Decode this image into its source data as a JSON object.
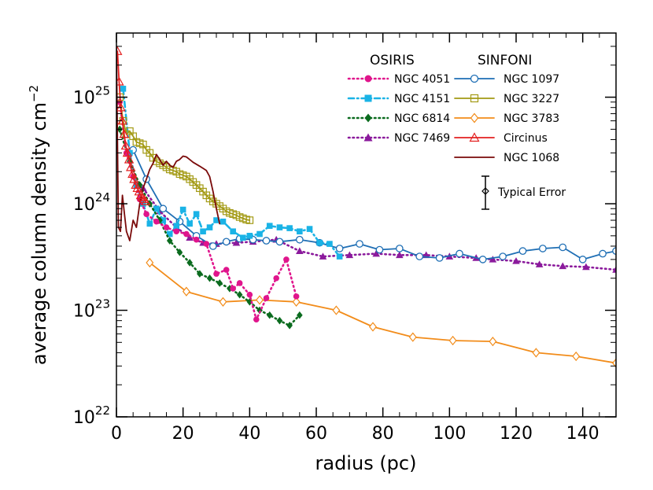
{
  "chart_data": {
    "type": "line",
    "xlabel": "radius (pc)",
    "ylabel": "average column density cm",
    "ylabel_exponent": "−2",
    "xlim": [
      0,
      150
    ],
    "ylim": [
      1e+22,
      4e+25
    ],
    "yscale": "log",
    "x_ticks": [
      0,
      20,
      40,
      60,
      80,
      100,
      120,
      140
    ],
    "x_tick_labels": [
      "0",
      "20",
      "40",
      "60",
      "80",
      "100",
      "120",
      "140"
    ],
    "y_ticks": [
      1e+22,
      1e+23,
      1e+24,
      1e+25
    ],
    "y_tick_base": "10",
    "y_tick_exponents": [
      "22",
      "23",
      "24",
      "25"
    ],
    "legend_placement": "top-right",
    "legend_groups": [
      "OSIRIS",
      "SINFONI"
    ],
    "typical_error_label": "Typical Error",
    "series": [
      {
        "name": "NGC 4051",
        "group": "OSIRIS",
        "color": "#e0158c",
        "dash": "dotted",
        "marker": "filled-circle",
        "x": [
          1,
          3,
          5,
          7,
          9,
          12,
          15,
          18,
          21,
          24,
          27,
          30,
          33,
          35,
          37,
          40,
          42,
          45,
          48,
          51,
          54
        ],
        "y": [
          9e+24,
          3e+24,
          1.8e+24,
          1.1e+24,
          8e+23,
          6.8e+23,
          6e+23,
          5.5e+23,
          5.2e+23,
          4.6e+23,
          4.2e+23,
          2.2e+23,
          2.4e+23,
          1.6e+23,
          1.8e+23,
          1.4e+23,
          8.2e+22,
          1.3e+23,
          2e+23,
          3e+23,
          1.35e+23
        ]
      },
      {
        "name": "NGC 4151",
        "group": "OSIRIS",
        "color": "#1ab3e6",
        "dash": "dash-dot",
        "marker": "filled-square",
        "x": [
          2,
          4,
          6,
          8,
          10,
          12,
          14,
          16,
          18,
          20,
          22,
          24,
          26,
          28,
          30,
          32,
          35,
          38,
          40,
          43,
          46,
          49,
          52,
          55,
          58,
          61,
          64,
          67
        ],
        "y": [
          1.2e+25,
          3e+24,
          1.5e+24,
          1e+24,
          6.5e+23,
          9e+23,
          7e+23,
          5.2e+23,
          6.2e+23,
          8.8e+23,
          6.5e+23,
          8e+23,
          5.5e+23,
          6e+23,
          7e+23,
          6.8e+23,
          5.5e+23,
          4.8e+23,
          5e+23,
          5.2e+23,
          6.2e+23,
          6e+23,
          5.9e+23,
          5.5e+23,
          5.8e+23,
          4.3e+23,
          4.2e+23,
          3.2e+23
        ]
      },
      {
        "name": "NGC 6814",
        "group": "OSIRIS",
        "color": "#0a6b1e",
        "dash": "dotted",
        "marker": "filled-diamond",
        "x": [
          1,
          4,
          7,
          10,
          13,
          16,
          19,
          22,
          25,
          28,
          31,
          34,
          37,
          40,
          43,
          46,
          49,
          52,
          55
        ],
        "y": [
          5e+24,
          2.5e+24,
          1.5e+24,
          1e+24,
          7e+23,
          4.5e+23,
          3.5e+23,
          2.8e+23,
          2.2e+23,
          2e+23,
          1.8e+23,
          1.6e+23,
          1.4e+23,
          1.2e+23,
          1e+23,
          9e+22,
          8e+22,
          7.2e+22,
          9e+22
        ]
      },
      {
        "name": "NGC 7469",
        "group": "OSIRIS",
        "color": "#8b1a9c",
        "dash": "dotted",
        "marker": "filled-triangle",
        "x": [
          8,
          13,
          18,
          22,
          26,
          30,
          36,
          41,
          48,
          55,
          62,
          70,
          78,
          85,
          93,
          100,
          108,
          113,
          120,
          127,
          134,
          141,
          150
        ],
        "y": [
          1.4e+24,
          8.5e+23,
          6e+23,
          4.8e+23,
          4.3e+23,
          4.2e+23,
          4.3e+23,
          4.4e+23,
          4.6e+23,
          3.6e+23,
          3.2e+23,
          3.3e+23,
          3.4e+23,
          3.3e+23,
          3.3e+23,
          3.2e+23,
          3.1e+23,
          3e+23,
          2.9e+23,
          2.7e+23,
          2.6e+23,
          2.55e+23,
          2.4e+23
        ]
      },
      {
        "name": "NGC 1097",
        "group": "SINFONI",
        "color": "#1f6fb5",
        "dash": "solid",
        "marker": "open-circle",
        "x": [
          5,
          9,
          14,
          19,
          24,
          29,
          33,
          37,
          41,
          45,
          49,
          55,
          61,
          67,
          73,
          79,
          85,
          91,
          97,
          103,
          110,
          116,
          122,
          128,
          134,
          140,
          146,
          150
        ],
        "y": [
          3.2e+24,
          1.7e+24,
          9e+23,
          6.8e+23,
          5e+23,
          4e+23,
          4.4e+23,
          4.7e+23,
          4.6e+23,
          4.5e+23,
          4.4e+23,
          4.6e+23,
          4.3e+23,
          3.8e+23,
          4.2e+23,
          3.7e+23,
          3.8e+23,
          3.2e+23,
          3.1e+23,
          3.4e+23,
          3e+23,
          3.2e+23,
          3.6e+23,
          3.8e+23,
          3.9e+23,
          3e+23,
          3.4e+23,
          3.6e+23
        ]
      },
      {
        "name": "NGC 3227",
        "group": "SINFONI",
        "color": "#a39a14",
        "dash": "solid",
        "marker": "open-square",
        "x": [
          1,
          2,
          3,
          4,
          5,
          6,
          7,
          8,
          9,
          10,
          11,
          12,
          13,
          14,
          15,
          16,
          17,
          18,
          19,
          20,
          21,
          22,
          23,
          24,
          25,
          26,
          27,
          28,
          29,
          30,
          31,
          32,
          33,
          34,
          35,
          36,
          37,
          38,
          39,
          40
        ],
        "y": [
          1e+25,
          6e+24,
          4.5e+24,
          4.8e+24,
          4.3e+24,
          3.8e+24,
          3.7e+24,
          3.6e+24,
          3.2e+24,
          3e+24,
          2.7e+24,
          2.5e+24,
          2.4e+24,
          2.3e+24,
          2.2e+24,
          2.1e+24,
          2.05e+24,
          2e+24,
          1.9e+24,
          1.85e+24,
          1.8e+24,
          1.7e+24,
          1.6e+24,
          1.5e+24,
          1.4e+24,
          1.3e+24,
          1.2e+24,
          1.12e+24,
          1.05e+24,
          1e+24,
          9.5e+23,
          9e+23,
          8.5e+23,
          8.2e+23,
          8e+23,
          7.8e+23,
          7.5e+23,
          7.3e+23,
          7.1e+23,
          7e+23
        ]
      },
      {
        "name": "NGC 3783",
        "group": "SINFONI",
        "color": "#f28c1a",
        "dash": "solid",
        "marker": "open-diamond",
        "x": [
          10,
          21,
          32,
          43,
          54,
          66,
          77,
          89,
          101,
          113,
          126,
          138,
          150
        ],
        "y": [
          2.8e+23,
          1.5e+23,
          1.2e+23,
          1.25e+23,
          1.2e+23,
          1e+23,
          7e+22,
          5.6e+22,
          5.2e+22,
          5.1e+22,
          4e+22,
          3.7e+22,
          3.2e+22
        ]
      },
      {
        "name": "Circinus",
        "group": "SINFONI",
        "color": "#e32020",
        "dash": "solid",
        "marker": "open-triangle",
        "x": [
          0.3,
          0.8,
          1.3,
          1.8,
          2.3,
          2.8,
          3.3,
          3.8,
          4.3,
          4.8,
          5.3,
          5.8,
          6.3,
          6.8,
          7.3,
          7.8,
          8.3,
          8.8
        ],
        "y": [
          2.7e+25,
          1.4e+25,
          8e+24,
          6e+24,
          4.5e+24,
          3.5e+24,
          3e+24,
          2.6e+24,
          2.2e+24,
          1.9e+24,
          1.7e+24,
          1.5e+24,
          1.4e+24,
          1.3e+24,
          1.2e+24,
          1.15e+24,
          1.1e+24,
          1.05e+24
        ]
      },
      {
        "name": "NGC 1068",
        "group": "SINFONI",
        "color": "#7a0a0a",
        "dash": "solid",
        "marker": "none",
        "x": [
          0,
          0.6,
          1.2,
          1.8,
          2.4,
          3,
          4,
          5,
          6,
          7,
          8,
          9,
          10,
          11,
          12,
          13,
          14,
          15,
          16,
          17,
          18,
          19,
          20,
          21,
          22,
          23,
          24,
          25,
          26,
          27,
          28,
          29,
          30,
          31
        ],
        "y": [
          3e+25,
          6e+23,
          5.5e+23,
          1.2e+24,
          8e+23,
          5.5e+23,
          4.5e+23,
          7e+23,
          6e+23,
          1e+24,
          1.4e+24,
          1.7e+24,
          2.1e+24,
          2.4e+24,
          2.9e+24,
          2.6e+24,
          2.3e+24,
          2.5e+24,
          2.3e+24,
          2.2e+24,
          2.5e+24,
          2.6e+24,
          2.8e+24,
          2.75e+24,
          2.6e+24,
          2.45e+24,
          2.35e+24,
          2.25e+24,
          2.15e+24,
          2.05e+24,
          1.8e+24,
          1.3e+24,
          9e+23,
          6.5e+23
        ]
      }
    ]
  }
}
